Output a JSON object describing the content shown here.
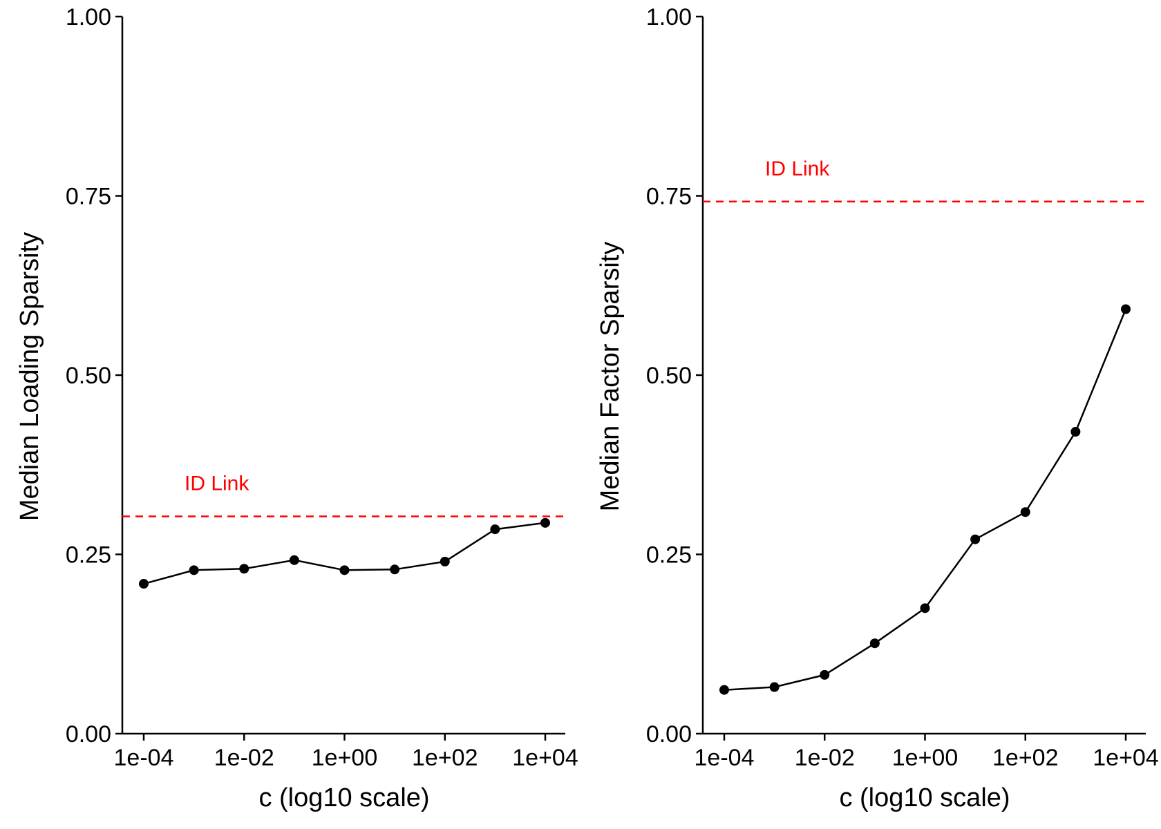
{
  "chart_data": [
    {
      "type": "line",
      "title": "",
      "xlabel": "c (log10 scale)",
      "ylabel": "Median Loading Sparsity",
      "x_scale": "log10",
      "x": [
        0.0001,
        0.001,
        0.01,
        0.1,
        1,
        10,
        100,
        1000,
        10000
      ],
      "series": [
        {
          "values": [
            0.209,
            0.228,
            0.23,
            0.242,
            0.228,
            0.229,
            0.24,
            0.285,
            0.294
          ],
          "color": "#000000"
        }
      ],
      "reference_line": {
        "label": "ID Link",
        "y": 0.303,
        "color": "#ff0000",
        "style": "dashed"
      },
      "xlim": [
        0.0001,
        10000
      ],
      "ylim": [
        0,
        1
      ],
      "x_ticks": [
        0.0001,
        0.01,
        1,
        100,
        10000
      ],
      "x_tick_labels": [
        "1e-04",
        "1e-02",
        "1e+00",
        "1e+02",
        "1e+04"
      ],
      "y_ticks": [
        0,
        0.25,
        0.5,
        0.75,
        1
      ],
      "y_tick_labels": [
        "0.00",
        "0.25",
        "0.50",
        "0.75",
        "1.00"
      ],
      "grid": false,
      "legend": "none"
    },
    {
      "type": "line",
      "title": "",
      "xlabel": "c (log10 scale)",
      "ylabel": "Median Factor Sparsity",
      "x_scale": "log10",
      "x": [
        0.0001,
        0.001,
        0.01,
        0.1,
        1,
        10,
        100,
        1000,
        10000
      ],
      "series": [
        {
          "values": [
            0.061,
            0.065,
            0.082,
            0.126,
            0.175,
            0.271,
            0.309,
            0.421,
            0.592
          ],
          "color": "#000000"
        }
      ],
      "reference_line": {
        "label": "ID Link",
        "y": 0.742,
        "color": "#ff0000",
        "style": "dashed"
      },
      "xlim": [
        0.0001,
        10000
      ],
      "ylim": [
        0,
        1
      ],
      "x_ticks": [
        0.0001,
        0.01,
        1,
        100,
        10000
      ],
      "x_tick_labels": [
        "1e-04",
        "1e-02",
        "1e+00",
        "1e+02",
        "1e+04"
      ],
      "y_ticks": [
        0,
        0.25,
        0.5,
        0.75,
        1
      ],
      "y_tick_labels": [
        "0.00",
        "0.25",
        "0.50",
        "0.75",
        "1.00"
      ],
      "grid": false,
      "legend": "none"
    }
  ]
}
